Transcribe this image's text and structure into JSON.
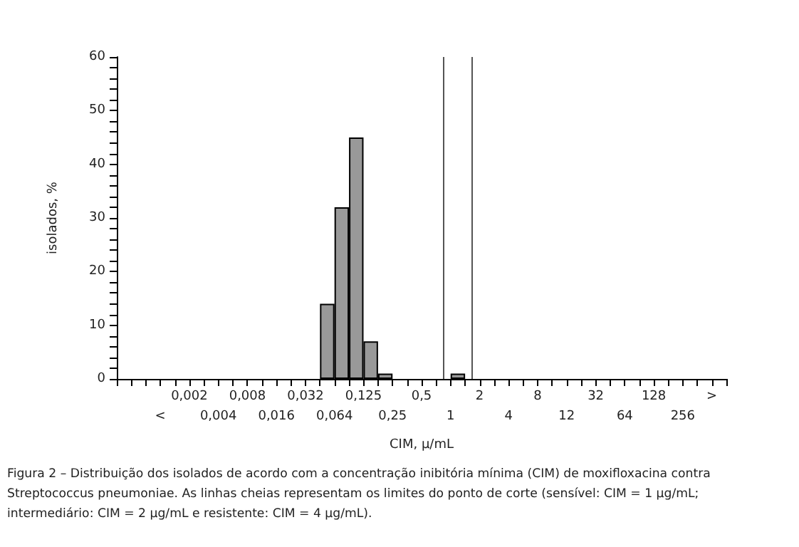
{
  "chart_data": {
    "type": "bar",
    "xlabel": "CIM, μ/mL",
    "ylabel": "isolados, %",
    "categories": [
      null,
      "<",
      "0,002",
      "0,004",
      "0,008",
      "0,016",
      "0,032",
      "0,064",
      "0,125",
      "0,25",
      "0,5",
      "1",
      "2",
      "4",
      "8",
      "12",
      "32",
      "64",
      "128",
      "256",
      ">"
    ],
    "series": [
      {
        "color": "#999999",
        "values": [
          null,
          null,
          null,
          null,
          null,
          null,
          null,
          14,
          45,
          1,
          null,
          null,
          null,
          null,
          null,
          null,
          null,
          null,
          null,
          null,
          null
        ]
      },
      {
        "color": "#999999",
        "values": [
          null,
          null,
          null,
          null,
          null,
          null,
          null,
          32,
          7,
          null,
          null,
          1,
          null,
          null,
          null,
          null,
          null,
          null,
          null,
          null,
          null
        ]
      }
    ],
    "ylim": [
      0,
      60
    ],
    "yticks": [
      0,
      {
        "value": 2,
        "label": null
      },
      {
        "value": 4,
        "label": null
      },
      {
        "value": 6,
        "label": null
      },
      {
        "value": 8,
        "label": null
      },
      10,
      {
        "value": 12,
        "label": null
      },
      {
        "value": 14,
        "label": null
      },
      {
        "value": 16,
        "label": null
      },
      {
        "value": 18,
        "label": null
      },
      20,
      {
        "value": 22,
        "label": null
      },
      {
        "value": 24,
        "label": null
      },
      {
        "value": 26,
        "label": null
      },
      {
        "value": 28,
        "label": null
      },
      30,
      {
        "value": 32,
        "label": null
      },
      {
        "value": 34,
        "label": null
      },
      {
        "value": 36,
        "label": null
      },
      {
        "value": 38,
        "label": null
      },
      40,
      {
        "value": 42,
        "label": null
      },
      {
        "value": 44,
        "label": null
      },
      {
        "value": 46,
        "label": null
      },
      {
        "value": 48,
        "label": null
      },
      50,
      {
        "value": 52,
        "label": null
      },
      {
        "value": 54,
        "label": null
      },
      {
        "value": 56,
        "label": null
      },
      {
        "value": 58,
        "label": null
      },
      60
    ],
    "ref_lines": [
      {
        "axis": "x",
        "value": "1",
        "color": "#555555"
      },
      {
        "axis": "x",
        "value": "2",
        "color": "#555555"
      }
    ],
    "grid": false,
    "annotations": [
      "Figura 2 – Distribuição dos isolados de acordo com a concentração inibitória mínima (CIM) de moxifloxacina contra Streptococcus pneumoniae. As linhas cheias representam os limites do ponto de corte (sensível: CIM = 1 μg/mL; intermediário: CIM = 2 μg/mL e resistente: CIM = 4 μg/mL)."
    ]
  }
}
